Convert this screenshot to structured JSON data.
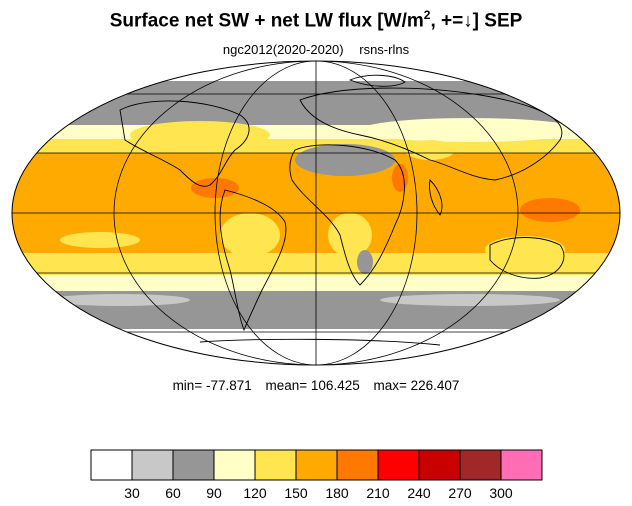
{
  "title": {
    "main": "Surface net SW + net LW flux [W/m",
    "superscript": "2",
    "tail": ", +=↓]  SEP"
  },
  "subtitle": {
    "left": "ngc2012(2020-2020)",
    "right": "rsns-rlns"
  },
  "stats": {
    "min": "min= -77.871",
    "mean": "mean= 106.425",
    "max": "max= 226.407"
  },
  "colorbar": {
    "colors": [
      "#ffffff",
      "#c8c8c8",
      "#969696",
      "#ffffc8",
      "#ffe650",
      "#ffaa00",
      "#ff7800",
      "#ff0000",
      "#c80000",
      "#a02828",
      "#ff6eb4"
    ],
    "labels": [
      "30",
      "60",
      "90",
      "120",
      "150",
      "180",
      "210",
      "240",
      "270",
      "300"
    ]
  },
  "map": {
    "projection": "Mollweide",
    "land_outline_color": "#000000",
    "grid_color": "#000000"
  }
}
